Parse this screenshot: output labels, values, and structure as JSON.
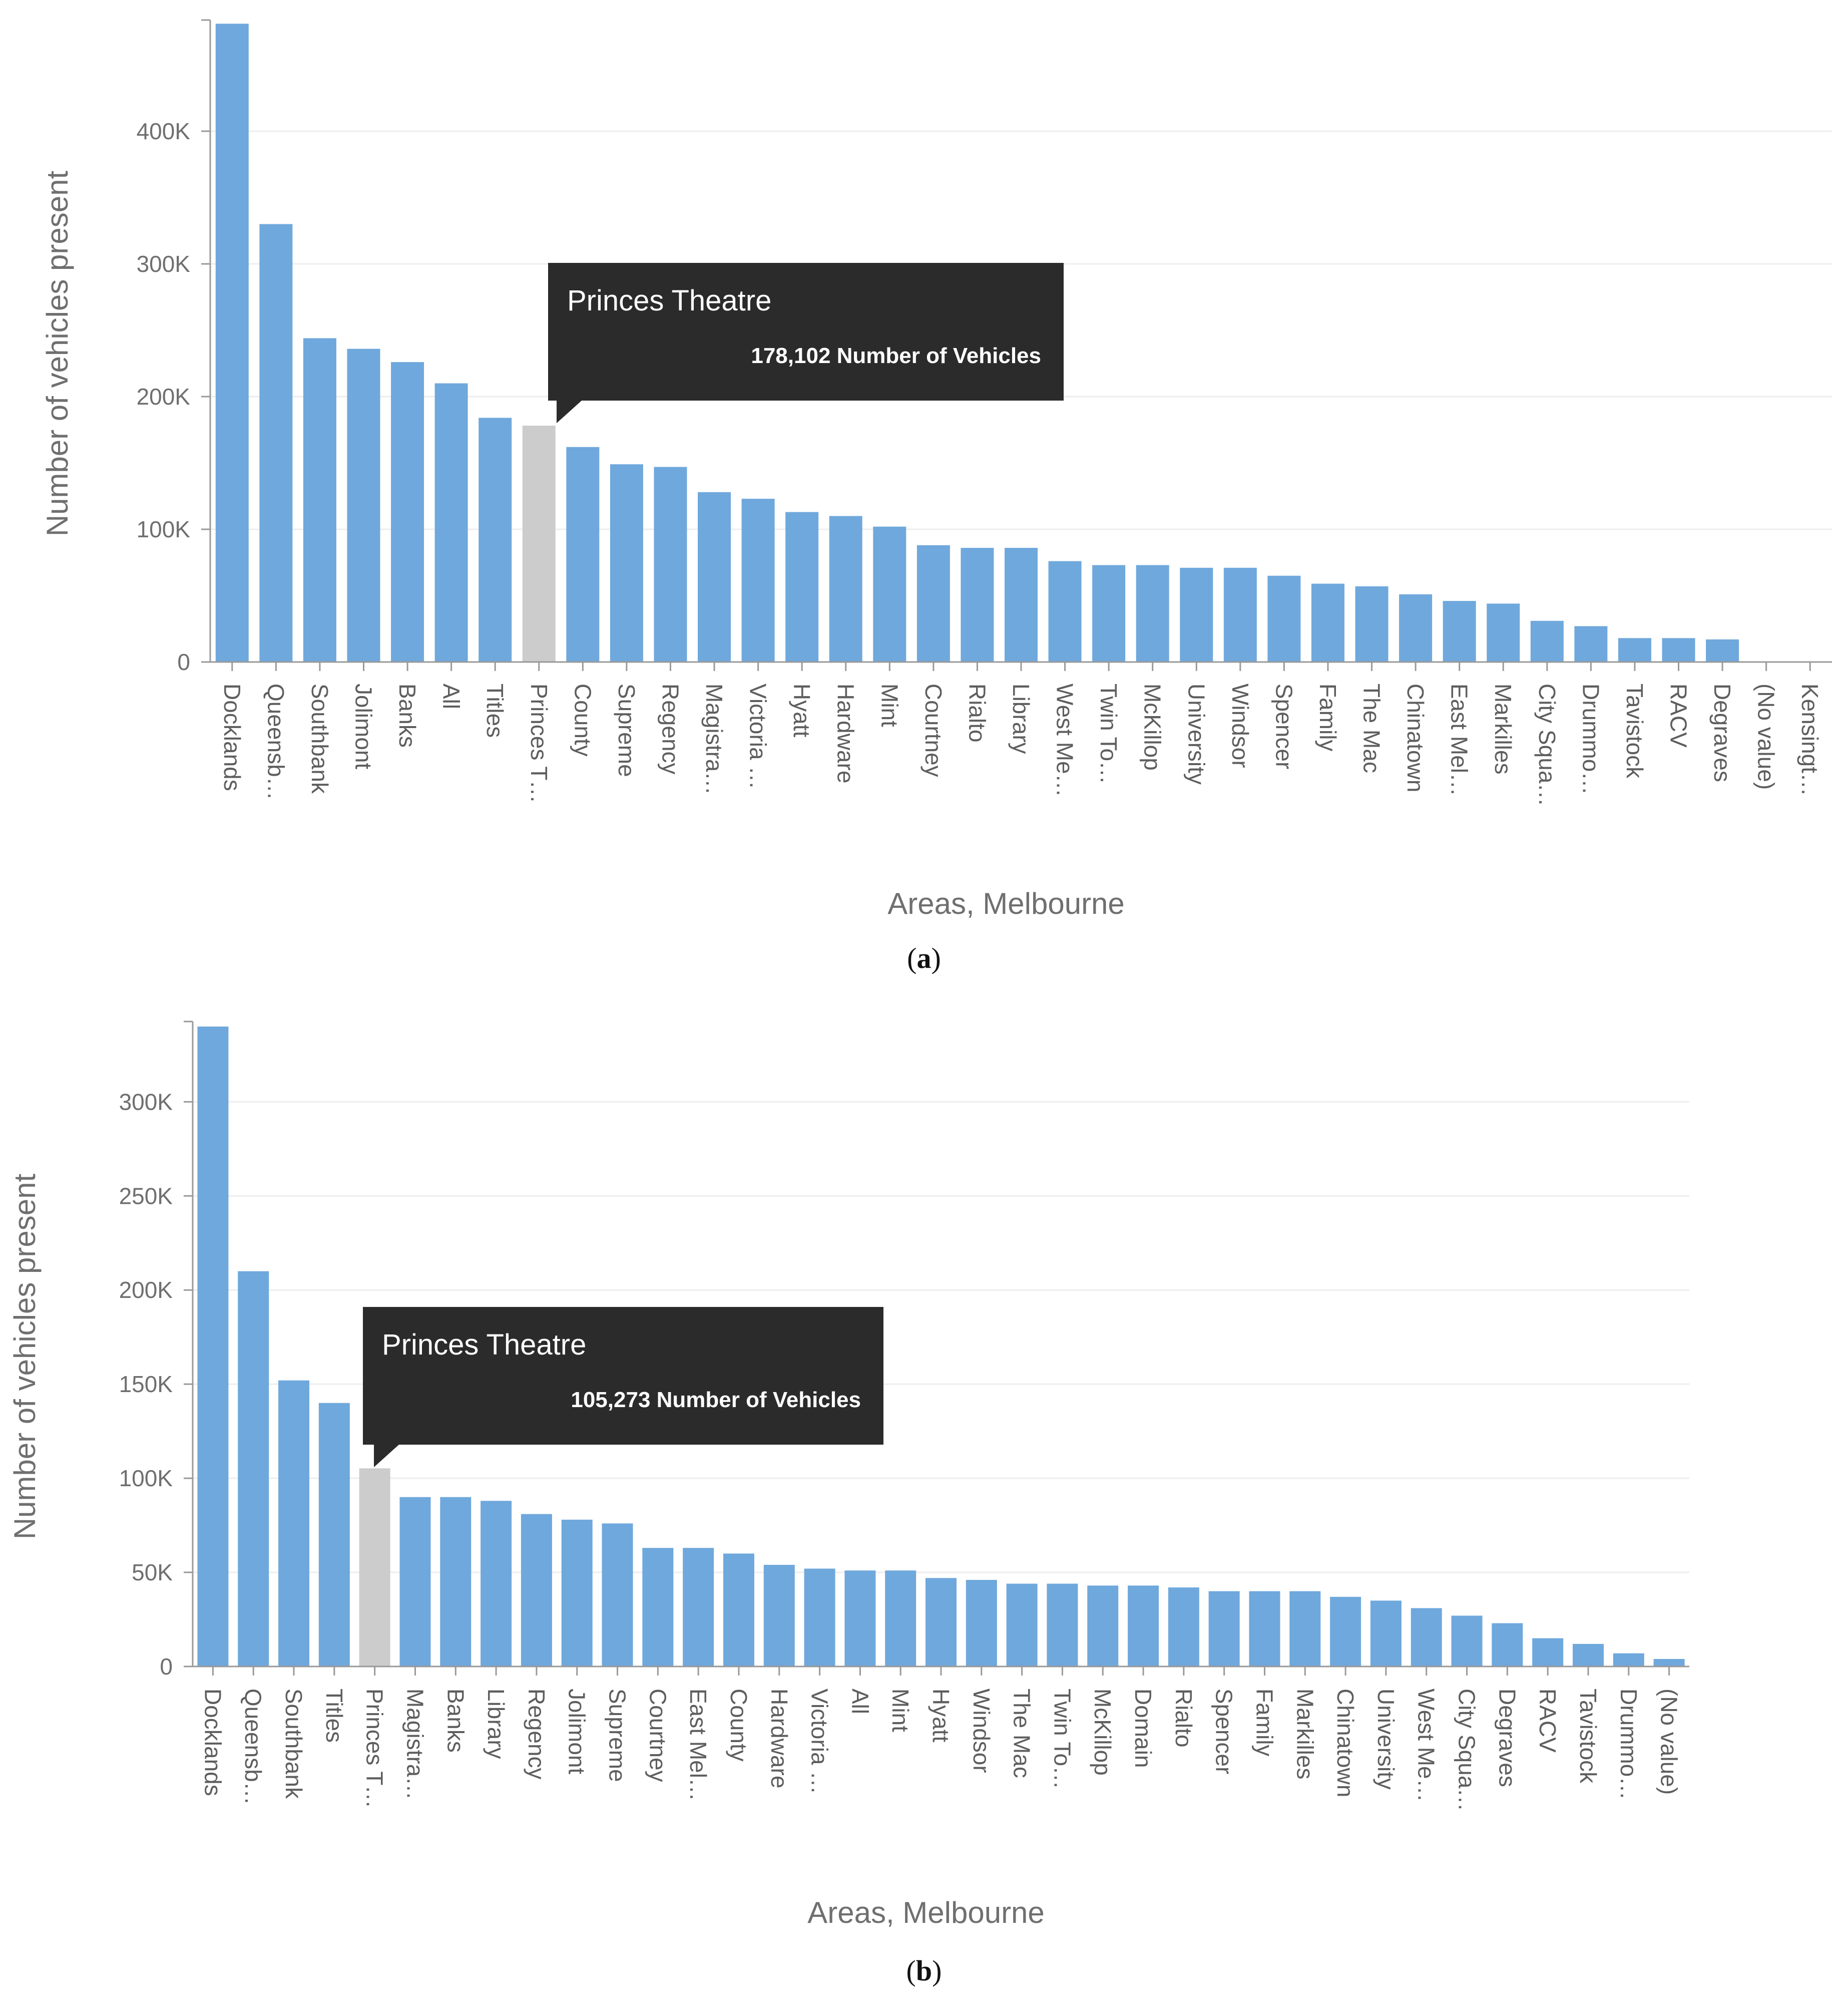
{
  "colors": {
    "bar": "#6fa8dc",
    "highlight": "#cccccc",
    "axis": "#999999",
    "grid": "#eeeeee",
    "tooltip_bg": "#2b2b2b"
  },
  "chart_data": [
    {
      "panel": "a",
      "caption": "a",
      "type": "bar",
      "xlabel": "Areas, Melbourne",
      "ylabel": "Number of vehicles present",
      "ylim": [
        0,
        480000
      ],
      "yticks": [
        0,
        100000,
        200000,
        300000,
        400000
      ],
      "ytick_labels": [
        "0",
        "100K",
        "200K",
        "300K",
        "400K"
      ],
      "grid": true,
      "categories": [
        "Docklands",
        "Queensb…",
        "Southbank",
        "Jolimont",
        "Banks",
        "All",
        "Titles",
        "Princes T…",
        "County",
        "Supreme",
        "Regency",
        "Magistra…",
        "Victoria …",
        "Hyatt",
        "Hardware",
        "Mint",
        "Courtney",
        "Rialto",
        "Library",
        "West Me…",
        "Twin To…",
        "McKillop",
        "University",
        "Windsor",
        "Spencer",
        "Family",
        "The Mac",
        "Chinatown",
        "East Mel…",
        "Markilles",
        "City Squa…",
        "Drummo…",
        "Tavistock",
        "RACV",
        "Degraves",
        "(No value)",
        "Kensingt…"
      ],
      "values": [
        481000,
        330000,
        244000,
        236000,
        226000,
        210000,
        184000,
        178102,
        162000,
        149000,
        147000,
        128000,
        123000,
        113000,
        110000,
        102000,
        88000,
        86000,
        86000,
        76000,
        73000,
        73000,
        71000,
        71000,
        65000,
        59000,
        57000,
        51000,
        46000,
        44000,
        31000,
        27000,
        18000,
        18000,
        17000,
        0,
        0
      ],
      "highlight_index": 7,
      "tooltip": {
        "title": "Princes Theatre",
        "value": "178,102 Number of Vehicles"
      }
    },
    {
      "panel": "b",
      "caption": "b",
      "type": "bar",
      "xlabel": "Areas, Melbourne",
      "ylabel": "Number of vehicles present",
      "ylim": [
        0,
        340000
      ],
      "yticks": [
        0,
        50000,
        100000,
        150000,
        200000,
        250000,
        300000
      ],
      "ytick_labels": [
        "0",
        "50K",
        "100K",
        "150K",
        "200K",
        "250K",
        "300K"
      ],
      "grid": true,
      "categories": [
        "Docklands",
        "Queensb…",
        "Southbank",
        "Titles",
        "Princes T…",
        "Magistra…",
        "Banks",
        "Library",
        "Regency",
        "Jolimont",
        "Supreme",
        "Courtney",
        "East Mel…",
        "County",
        "Hardware",
        "Victoria …",
        "All",
        "Mint",
        "Hyatt",
        "Windsor",
        "The Mac",
        "Twin To…",
        "McKillop",
        "Domain",
        "Rialto",
        "Spencer",
        "Family",
        "Markilles",
        "Chinatown",
        "University",
        "West Me…",
        "City Squa…",
        "Degraves",
        "RACV",
        "Tavistock",
        "Drummo…",
        "(No value)"
      ],
      "values": [
        340000,
        210000,
        152000,
        140000,
        105273,
        90000,
        90000,
        88000,
        81000,
        78000,
        76000,
        63000,
        63000,
        60000,
        54000,
        52000,
        51000,
        51000,
        47000,
        46000,
        44000,
        44000,
        43000,
        43000,
        42000,
        40000,
        40000,
        40000,
        37000,
        35000,
        31000,
        27000,
        23000,
        15000,
        12000,
        7000,
        4000
      ],
      "highlight_index": 4,
      "tooltip": {
        "title": "Princes Theatre",
        "value": "105,273 Number of Vehicles"
      }
    }
  ]
}
